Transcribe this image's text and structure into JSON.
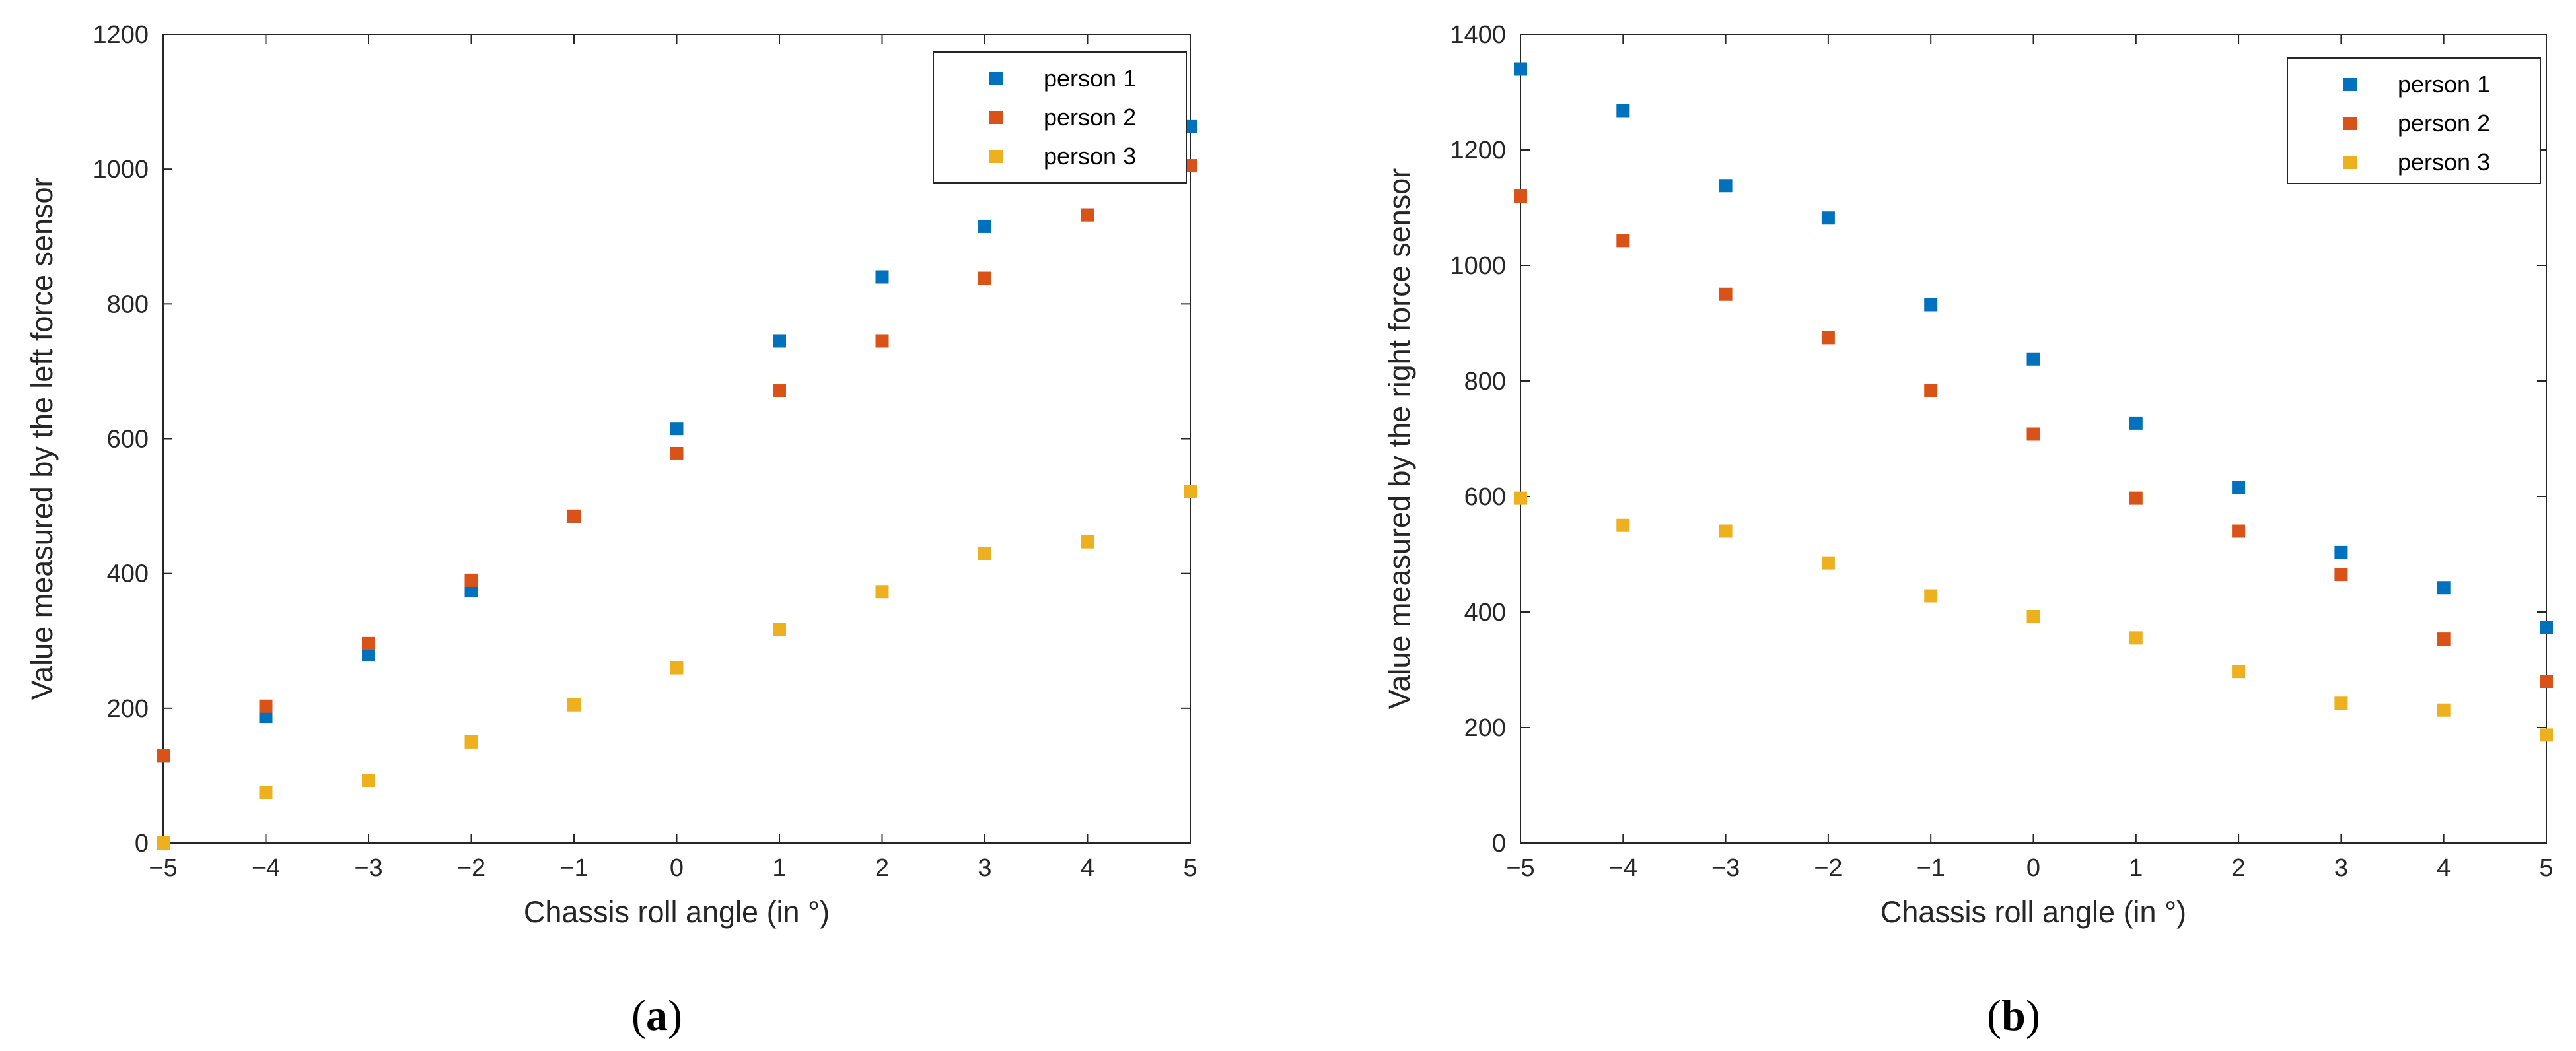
{
  "chart_data": [
    {
      "type": "scatter",
      "panel": "(a)",
      "caption_letter": "a",
      "xlabel": "Chassis roll angle (in °)",
      "ylabel": "Value measured by the left force sensor",
      "xlim": [
        -5,
        5
      ],
      "ylim": [
        0,
        1200
      ],
      "xticks": [
        -5,
        -4,
        -3,
        -2,
        -1,
        0,
        1,
        2,
        3,
        4,
        5
      ],
      "xtick_labels": [
        "−5",
        "−4",
        "−3",
        "−2",
        "−1",
        "0",
        "1",
        "2",
        "3",
        "4",
        "5"
      ],
      "yticks": [
        0,
        200,
        400,
        600,
        800,
        1000,
        1200
      ],
      "ytick_labels": [
        "0",
        "200",
        "400",
        "600",
        "800",
        "1000",
        "1200"
      ],
      "legend_position": "top-right",
      "x": [
        -5,
        -4,
        -3,
        -2,
        -1,
        0,
        1,
        2,
        3,
        4,
        5
      ],
      "series": [
        {
          "name": "person 1",
          "color": "#0072BD",
          "values": [
            130,
            188,
            280,
            375,
            485,
            615,
            745,
            840,
            915,
            932,
            1063
          ]
        },
        {
          "name": "person 2",
          "color": "#D95319",
          "values": [
            130,
            203,
            296,
            390,
            485,
            578,
            671,
            745,
            838,
            932,
            1005
          ]
        },
        {
          "name": "person 3",
          "color": "#EDB120",
          "values": [
            0,
            75,
            93,
            150,
            205,
            260,
            317,
            373,
            430,
            447,
            522
          ]
        }
      ]
    },
    {
      "type": "scatter",
      "panel": "(b)",
      "caption_letter": "b",
      "xlabel": "Chassis roll angle (in °)",
      "ylabel": "Value measured by the right force sensor",
      "xlim": [
        -5,
        5
      ],
      "ylim": [
        0,
        1400
      ],
      "xticks": [
        -5,
        -4,
        -3,
        -2,
        -1,
        0,
        1,
        2,
        3,
        4,
        5
      ],
      "xtick_labels": [
        "−5",
        "−4",
        "−3",
        "−2",
        "−1",
        "0",
        "1",
        "2",
        "3",
        "4",
        "5"
      ],
      "yticks": [
        0,
        200,
        400,
        600,
        800,
        1000,
        1200,
        1400
      ],
      "ytick_labels": [
        "0",
        "200",
        "400",
        "600",
        "800",
        "1000",
        "1200",
        "1400"
      ],
      "legend_position": "top-right",
      "x": [
        -5,
        -4,
        -3,
        -2,
        -1,
        0,
        1,
        2,
        3,
        4,
        5
      ],
      "series": [
        {
          "name": "person 1",
          "color": "#0072BD",
          "values": [
            1340,
            1268,
            1138,
            1082,
            932,
            838,
            727,
            615,
            503,
            442,
            373
          ]
        },
        {
          "name": "person 2",
          "color": "#D95319",
          "values": [
            1120,
            1043,
            950,
            875,
            783,
            708,
            597,
            540,
            465,
            353,
            280
          ]
        },
        {
          "name": "person 3",
          "color": "#EDB120",
          "values": [
            597,
            550,
            540,
            485,
            428,
            392,
            355,
            297,
            242,
            230,
            187
          ]
        }
      ]
    }
  ]
}
